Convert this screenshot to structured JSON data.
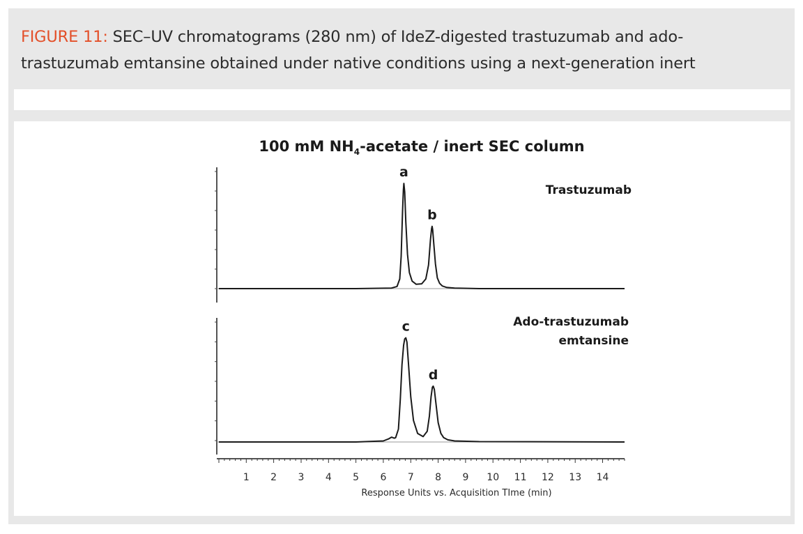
{
  "caption": {
    "figure_label": "FIGURE 11:",
    "text": "SEC–UV chromatograms (280 nm) of IdeZ-digested trastuzumab and ado-trastuzumab emtansine obtained under native conditions using a next-generation inert"
  },
  "chart_data": {
    "type": "line",
    "title_prefix": "100 mM NH",
    "title_subscript": "4",
    "title_suffix": "-acetate / inert SEC column",
    "xlabel": "Response Units vs. Acquisition TIme (min)",
    "xlim": [
      0,
      14.8
    ],
    "xticks": [
      1,
      2,
      3,
      4,
      5,
      6,
      7,
      8,
      9,
      10,
      11,
      12,
      13,
      14
    ],
    "grid": false,
    "line_color": "#1a1a1a",
    "panels": [
      {
        "label": "Trastuzumab",
        "ylim": [
          0,
          1.0
        ],
        "peaks": [
          {
            "label": "a",
            "time": 6.75,
            "height": 0.98
          },
          {
            "label": "b",
            "time": 7.78,
            "height": 0.58
          }
        ],
        "series": [
          {
            "x": [
              0,
              5.0,
              6.3,
              6.5,
              6.6,
              6.65,
              6.7,
              6.73,
              6.75,
              6.78,
              6.82,
              6.88,
              6.95,
              7.05,
              7.2,
              7.4,
              7.55,
              7.65,
              7.72,
              7.76,
              7.78,
              7.8,
              7.84,
              7.9,
              7.97,
              8.05,
              8.15,
              8.3,
              8.6,
              9.5,
              14.8
            ],
            "y": [
              0.0,
              0.0,
              0.005,
              0.02,
              0.09,
              0.3,
              0.72,
              0.92,
              0.98,
              0.9,
              0.62,
              0.32,
              0.15,
              0.07,
              0.04,
              0.045,
              0.09,
              0.22,
              0.46,
              0.56,
              0.58,
              0.55,
              0.42,
              0.23,
              0.1,
              0.05,
              0.025,
              0.012,
              0.005,
              0.0,
              0.0
            ]
          }
        ]
      },
      {
        "label": "Ado-trastuzumab emtansine",
        "ylim": [
          0,
          1.0
        ],
        "peaks": [
          {
            "label": "c",
            "time": 6.82,
            "height": 0.97
          },
          {
            "label": "d",
            "time": 7.82,
            "height": 0.52
          }
        ],
        "series": [
          {
            "x": [
              0,
              5.0,
              6.0,
              6.2,
              6.3,
              6.4,
              6.45,
              6.55,
              6.62,
              6.68,
              6.74,
              6.78,
              6.82,
              6.86,
              6.92,
              7.0,
              7.1,
              7.25,
              7.45,
              7.6,
              7.68,
              7.74,
              7.79,
              7.82,
              7.86,
              7.92,
              8.0,
              8.1,
              8.2,
              8.35,
              8.6,
              9.5,
              14.8
            ],
            "y": [
              0.0,
              0.0,
              0.01,
              0.03,
              0.045,
              0.035,
              0.04,
              0.12,
              0.4,
              0.72,
              0.9,
              0.96,
              0.97,
              0.93,
              0.72,
              0.42,
              0.2,
              0.08,
              0.05,
              0.1,
              0.24,
              0.42,
              0.51,
              0.52,
              0.49,
              0.36,
              0.18,
              0.08,
              0.04,
              0.02,
              0.01,
              0.003,
              0.0
            ]
          }
        ]
      }
    ]
  }
}
